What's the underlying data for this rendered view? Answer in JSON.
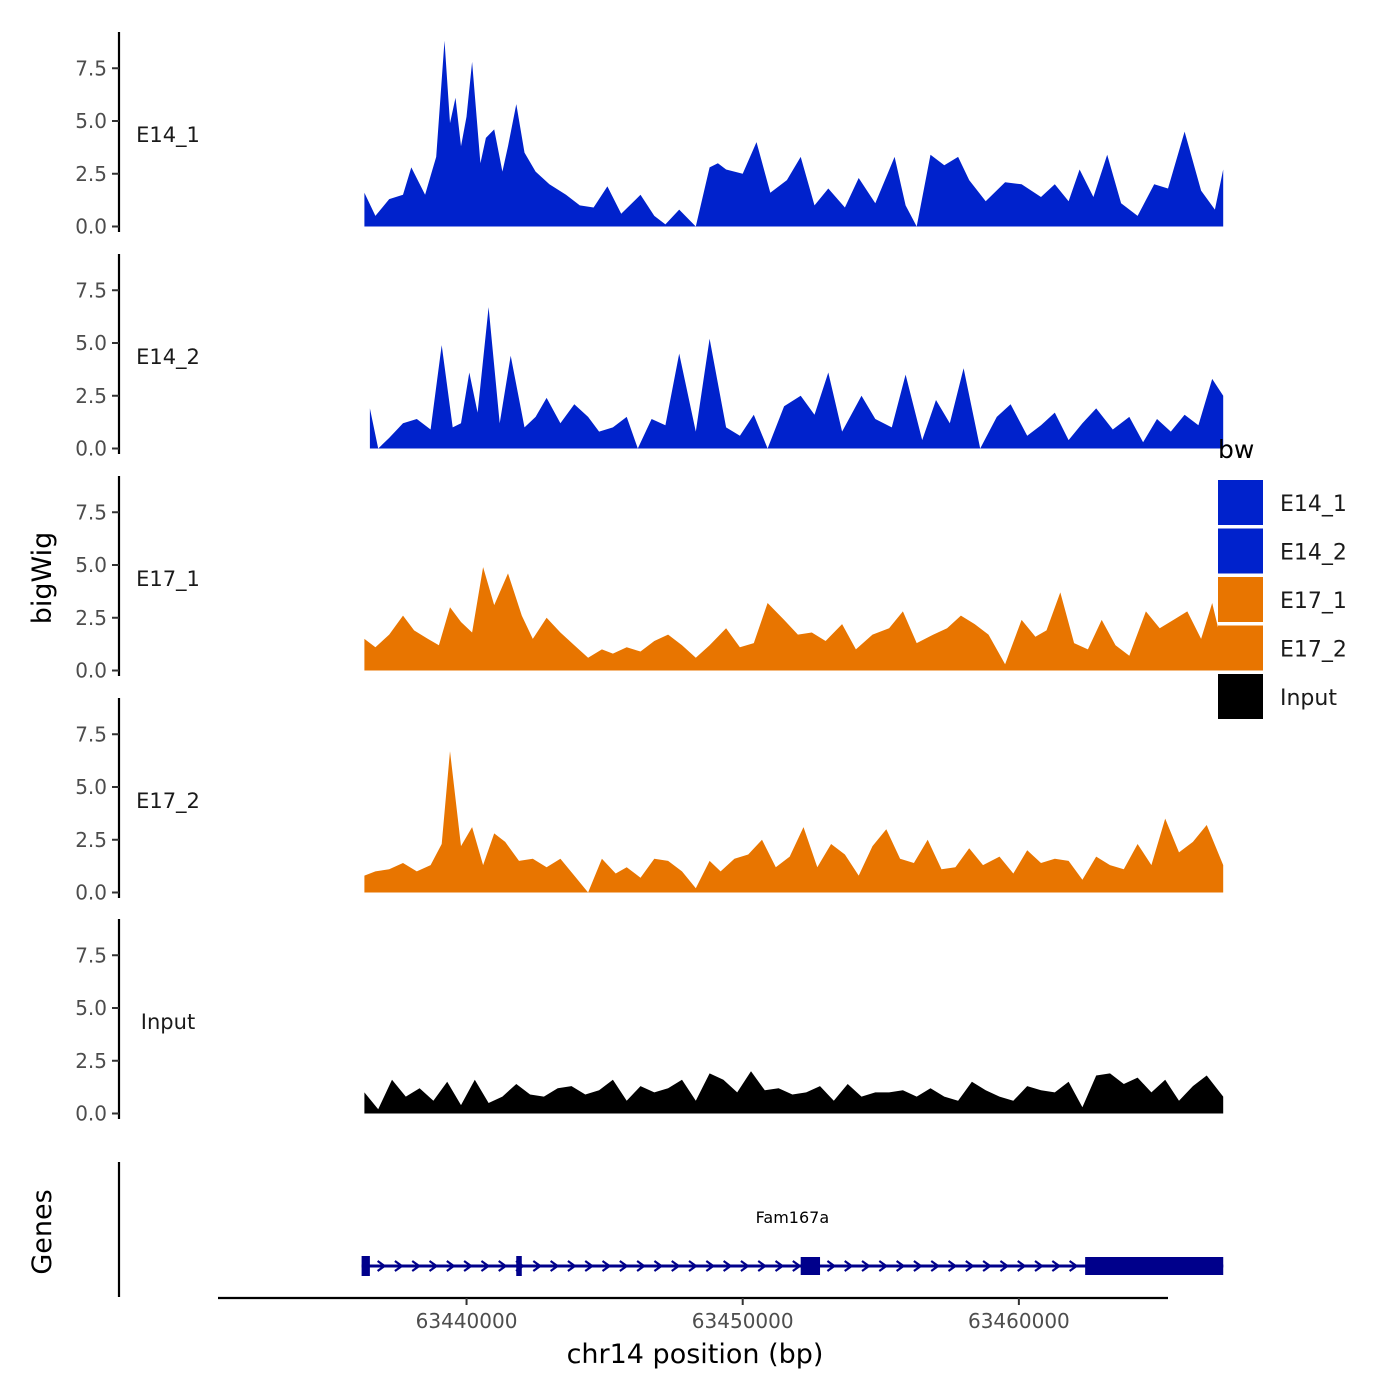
{
  "chart_data": {
    "type": "area",
    "title": "",
    "ylabel": "bigWig",
    "genes_ylabel": "Genes",
    "xlabel": "chr14 position (bp)",
    "ylim": [
      0,
      9.3
    ],
    "yticks": [
      0.0,
      2.5,
      5.0,
      7.5
    ],
    "ytick_labels": [
      "0.0",
      "2.5",
      "5.0",
      "7.5"
    ],
    "xlim": [
      63431000,
      63465400
    ],
    "xticks": [
      63440000,
      63450000,
      63460000
    ],
    "xtick_labels": [
      "63440000",
      "63450000",
      "63460000"
    ],
    "data_range": [
      63436300,
      63467400
    ],
    "legend": {
      "title": "bw",
      "position": "right",
      "entries": [
        {
          "label": "E14_1",
          "color": "#0022CC"
        },
        {
          "label": "E14_2",
          "color": "#0022CC"
        },
        {
          "label": "E17_1",
          "color": "#E87500"
        },
        {
          "label": "E17_2",
          "color": "#E87500"
        },
        {
          "label": "Input",
          "color": "#000000"
        }
      ]
    },
    "series": [
      {
        "name": "E14_1",
        "color": "#0022CC",
        "x": [
          63436300,
          63436700,
          63437200,
          63437700,
          63438000,
          63438500,
          63438700,
          63438900,
          63439200,
          63439400,
          63439600,
          63439800,
          63440000,
          63440200,
          63440500,
          63440700,
          63441000,
          63441300,
          63441500,
          63441800,
          63442100,
          63442500,
          63443000,
          63443600,
          63444100,
          63444600,
          63445100,
          63445600,
          63446300,
          63446800,
          63447200,
          63447700,
          63448300,
          63448800,
          63449100,
          63449400,
          63450000,
          63450500,
          63451000,
          63451600,
          63452100,
          63452600,
          63453100,
          63453700,
          63454200,
          63454800,
          63455500,
          63455900,
          63456300,
          63456800,
          63457300,
          63457800,
          63458200,
          63458800,
          63459500,
          63460100,
          63460800,
          63461300,
          63461800,
          63462200,
          63462700,
          63463200,
          63463700,
          63464300,
          63464900,
          63465400,
          63466000,
          63466600,
          63467100,
          63467400
        ],
        "values": [
          1.6,
          0.5,
          1.3,
          1.5,
          2.8,
          1.5,
          2.4,
          3.3,
          8.8,
          4.9,
          6.1,
          3.8,
          5.2,
          7.8,
          3.0,
          4.2,
          4.6,
          2.6,
          3.8,
          5.8,
          3.5,
          2.6,
          2.0,
          1.5,
          1.0,
          0.9,
          1.9,
          0.6,
          1.5,
          0.5,
          0.1,
          0.8,
          0.0,
          2.8,
          3.0,
          2.7,
          2.5,
          4.0,
          1.6,
          2.2,
          3.3,
          1.0,
          1.8,
          0.9,
          2.3,
          1.1,
          3.3,
          1.0,
          0.0,
          3.4,
          2.9,
          3.3,
          2.2,
          1.2,
          2.1,
          2.0,
          1.4,
          2.0,
          1.2,
          2.7,
          1.4,
          3.4,
          1.1,
          0.5,
          2.0,
          1.8,
          4.5,
          1.7,
          0.8,
          2.7
        ]
      },
      {
        "name": "E14_2",
        "color": "#0022CC",
        "x": [
          63436500,
          63436800,
          63437200,
          63437700,
          63438200,
          63438700,
          63439100,
          63439500,
          63439800,
          63440100,
          63440400,
          63440800,
          63441200,
          63441600,
          63442100,
          63442500,
          63442900,
          63443400,
          63443900,
          63444400,
          63444800,
          63445300,
          63445800,
          63446200,
          63446700,
          63447200,
          63447700,
          63448300,
          63448800,
          63449400,
          63449900,
          63450400,
          63450900,
          63451500,
          63452100,
          63452600,
          63453100,
          63453600,
          63454300,
          63454800,
          63455400,
          63455900,
          63456500,
          63457000,
          63457500,
          63458000,
          63458600,
          63459200,
          63459700,
          63460300,
          63460800,
          63461300,
          63461800,
          63462300,
          63462800,
          63463400,
          63464000,
          63464500,
          63465000,
          63465500,
          63466000,
          63466500,
          63467000,
          63467400
        ],
        "values": [
          1.9,
          0.0,
          0.5,
          1.2,
          1.4,
          0.9,
          4.9,
          1.0,
          1.2,
          3.6,
          1.7,
          6.7,
          1.2,
          4.4,
          1.0,
          1.5,
          2.4,
          1.2,
          2.1,
          1.5,
          0.8,
          1.0,
          1.5,
          0.0,
          1.4,
          1.1,
          4.5,
          0.8,
          5.2,
          1.0,
          0.6,
          1.6,
          0.0,
          2.0,
          2.5,
          1.6,
          3.6,
          0.8,
          2.5,
          1.4,
          1.0,
          3.5,
          0.4,
          2.3,
          1.2,
          3.8,
          0.0,
          1.5,
          2.1,
          0.6,
          1.1,
          1.7,
          0.4,
          1.2,
          1.9,
          0.9,
          1.5,
          0.3,
          1.4,
          0.8,
          1.6,
          1.1,
          3.3,
          2.5
        ]
      },
      {
        "name": "E17_1",
        "color": "#E87500",
        "x": [
          63436300,
          63436700,
          63437200,
          63437700,
          63438100,
          63438600,
          63439000,
          63439400,
          63439800,
          63440200,
          63440600,
          63441000,
          63441500,
          63442000,
          63442400,
          63442900,
          63443400,
          63443900,
          63444400,
          63444900,
          63445300,
          63445800,
          63446300,
          63446800,
          63447300,
          63447800,
          63448300,
          63448800,
          63449400,
          63449900,
          63450400,
          63450900,
          63451500,
          63452000,
          63452500,
          63453000,
          63453600,
          63454100,
          63454700,
          63455300,
          63455800,
          63456300,
          63456900,
          63457400,
          63457900,
          63458400,
          63458900,
          63459500,
          63460100,
          63460600,
          63461000,
          63461500,
          63462000,
          63462500,
          63463000,
          63463500,
          63464000,
          63464600,
          63465100,
          63465600,
          63466100,
          63466600,
          63467000,
          63467400
        ],
        "values": [
          1.5,
          1.1,
          1.7,
          2.6,
          1.9,
          1.5,
          1.2,
          3.0,
          2.3,
          1.8,
          4.9,
          3.1,
          4.6,
          2.6,
          1.5,
          2.5,
          1.8,
          1.2,
          0.6,
          1.0,
          0.8,
          1.1,
          0.9,
          1.4,
          1.7,
          1.2,
          0.6,
          1.2,
          2.0,
          1.1,
          1.3,
          3.2,
          2.4,
          1.7,
          1.8,
          1.4,
          2.2,
          1.0,
          1.7,
          2.0,
          2.8,
          1.3,
          1.7,
          2.0,
          2.6,
          2.2,
          1.7,
          0.3,
          2.4,
          1.6,
          1.9,
          3.7,
          1.3,
          1.0,
          2.4,
          1.2,
          0.7,
          2.8,
          2.0,
          2.4,
          2.8,
          1.5,
          3.2,
          1.0
        ]
      },
      {
        "name": "E17_2",
        "color": "#E87500",
        "x": [
          63436300,
          63436700,
          63437200,
          63437700,
          63438200,
          63438700,
          63439100,
          63439400,
          63439800,
          63440200,
          63440600,
          63441000,
          63441400,
          63441900,
          63442400,
          63442900,
          63443400,
          63443900,
          63444400,
          63444900,
          63445400,
          63445800,
          63446300,
          63446800,
          63447300,
          63447800,
          63448300,
          63448800,
          63449200,
          63449700,
          63450200,
          63450700,
          63451200,
          63451700,
          63452200,
          63452700,
          63453200,
          63453700,
          63454200,
          63454700,
          63455200,
          63455700,
          63456200,
          63456700,
          63457200,
          63457700,
          63458200,
          63458700,
          63459300,
          63459800,
          63460300,
          63460800,
          63461300,
          63461800,
          63462300,
          63462800,
          63463300,
          63463800,
          63464300,
          63464800,
          63465300,
          63465800,
          63466300,
          63466800,
          63467400
        ],
        "values": [
          0.8,
          1.0,
          1.1,
          1.4,
          1.0,
          1.3,
          2.3,
          6.7,
          2.2,
          3.1,
          1.3,
          2.8,
          2.4,
          1.5,
          1.6,
          1.2,
          1.6,
          0.8,
          0.0,
          1.6,
          0.9,
          1.2,
          0.7,
          1.6,
          1.5,
          1.0,
          0.2,
          1.5,
          1.0,
          1.6,
          1.8,
          2.5,
          1.2,
          1.7,
          3.1,
          1.2,
          2.3,
          1.8,
          0.8,
          2.2,
          3.0,
          1.6,
          1.4,
          2.5,
          1.1,
          1.2,
          2.1,
          1.3,
          1.7,
          0.9,
          2.0,
          1.4,
          1.6,
          1.5,
          0.6,
          1.7,
          1.3,
          1.1,
          2.3,
          1.3,
          3.5,
          1.9,
          2.4,
          3.2,
          1.3
        ]
      },
      {
        "name": "Input",
        "color": "#000000",
        "x": [
          63436300,
          63436800,
          63437300,
          63437800,
          63438300,
          63438800,
          63439300,
          63439800,
          63440300,
          63440800,
          63441300,
          63441800,
          63442300,
          63442800,
          63443300,
          63443800,
          63444300,
          63444800,
          63445300,
          63445800,
          63446300,
          63446800,
          63447300,
          63447800,
          63448300,
          63448800,
          63449300,
          63449800,
          63450300,
          63450800,
          63451300,
          63451800,
          63452300,
          63452800,
          63453300,
          63453800,
          63454300,
          63454800,
          63455300,
          63455800,
          63456300,
          63456800,
          63457300,
          63457800,
          63458300,
          63458800,
          63459300,
          63459800,
          63460300,
          63460800,
          63461300,
          63461800,
          63462300,
          63462800,
          63463300,
          63463800,
          63464300,
          63464800,
          63465300,
          63465800,
          63466300,
          63466800,
          63467400
        ],
        "values": [
          1.0,
          0.2,
          1.6,
          0.8,
          1.2,
          0.6,
          1.5,
          0.4,
          1.6,
          0.5,
          0.8,
          1.4,
          0.9,
          0.8,
          1.2,
          1.3,
          0.9,
          1.1,
          1.6,
          0.6,
          1.3,
          1.0,
          1.2,
          1.6,
          0.6,
          1.9,
          1.6,
          1.0,
          2.0,
          1.1,
          1.2,
          0.9,
          1.0,
          1.3,
          0.6,
          1.4,
          0.8,
          1.0,
          1.0,
          1.1,
          0.8,
          1.2,
          0.8,
          0.6,
          1.5,
          1.1,
          0.8,
          0.6,
          1.3,
          1.1,
          1.0,
          1.5,
          0.3,
          1.8,
          1.9,
          1.4,
          1.7,
          1.0,
          1.6,
          0.6,
          1.3,
          1.8,
          0.8
        ]
      }
    ],
    "gene_track": {
      "label": "Fam167a",
      "color": "#00008B",
      "strand": "+",
      "line_range": [
        63436200,
        63467400
      ],
      "exons": [
        [
          63436200,
          63436500
        ],
        [
          63441800,
          63442000
        ],
        [
          63452100,
          63452800
        ],
        [
          63462400,
          63467400
        ]
      ]
    }
  }
}
